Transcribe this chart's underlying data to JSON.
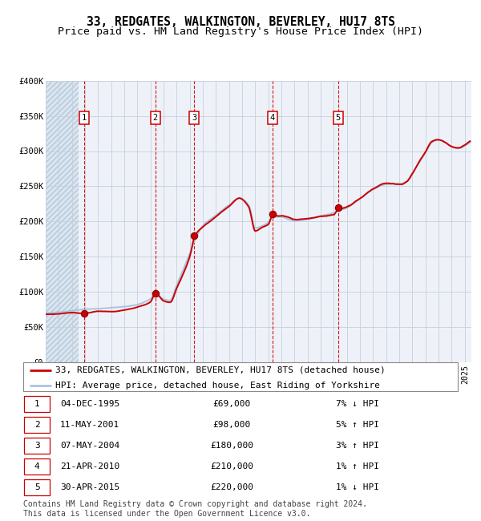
{
  "title": "33, REDGATES, WALKINGTON, BEVERLEY, HU17 8TS",
  "subtitle": "Price paid vs. HM Land Registry's House Price Index (HPI)",
  "ylim": [
    0,
    400000
  ],
  "yticks": [
    0,
    50000,
    100000,
    150000,
    200000,
    250000,
    300000,
    350000,
    400000
  ],
  "ytick_labels": [
    "£0",
    "£50K",
    "£100K",
    "£150K",
    "£200K",
    "£250K",
    "£300K",
    "£350K",
    "£400K"
  ],
  "xlim_start": 1993.0,
  "xlim_end": 2025.5,
  "hpi_color": "#a8c4e0",
  "sale_color": "#cc0000",
  "background_color": "#eef2f8",
  "grid_color": "#c5d0de",
  "vline_color": "#cc0000",
  "hatch_end": 1995.5,
  "sales": [
    {
      "label": 1,
      "year": 1995.92,
      "price": 69000,
      "date": "04-DEC-1995",
      "pct": "7%",
      "dir": "↓"
    },
    {
      "label": 2,
      "year": 2001.36,
      "price": 98000,
      "date": "11-MAY-2001",
      "pct": "5%",
      "dir": "↑"
    },
    {
      "label": 3,
      "year": 2004.35,
      "price": 180000,
      "date": "07-MAY-2004",
      "pct": "3%",
      "dir": "↑"
    },
    {
      "label": 4,
      "year": 2010.31,
      "price": 210000,
      "date": "21-APR-2010",
      "pct": "1%",
      "dir": "↑"
    },
    {
      "label": 5,
      "year": 2015.32,
      "price": 220000,
      "date": "30-APR-2015",
      "pct": "1%",
      "dir": "↓"
    }
  ],
  "legend_sale_label": "33, REDGATES, WALKINGTON, BEVERLEY, HU17 8TS (detached house)",
  "legend_hpi_label": "HPI: Average price, detached house, East Riding of Yorkshire",
  "footnote": "Contains HM Land Registry data © Crown copyright and database right 2024.\nThis data is licensed under the Open Government Licence v3.0.",
  "title_fontsize": 10.5,
  "subtitle_fontsize": 9.5,
  "tick_fontsize": 7.5,
  "legend_fontsize": 8,
  "table_fontsize": 8,
  "footnote_fontsize": 7
}
